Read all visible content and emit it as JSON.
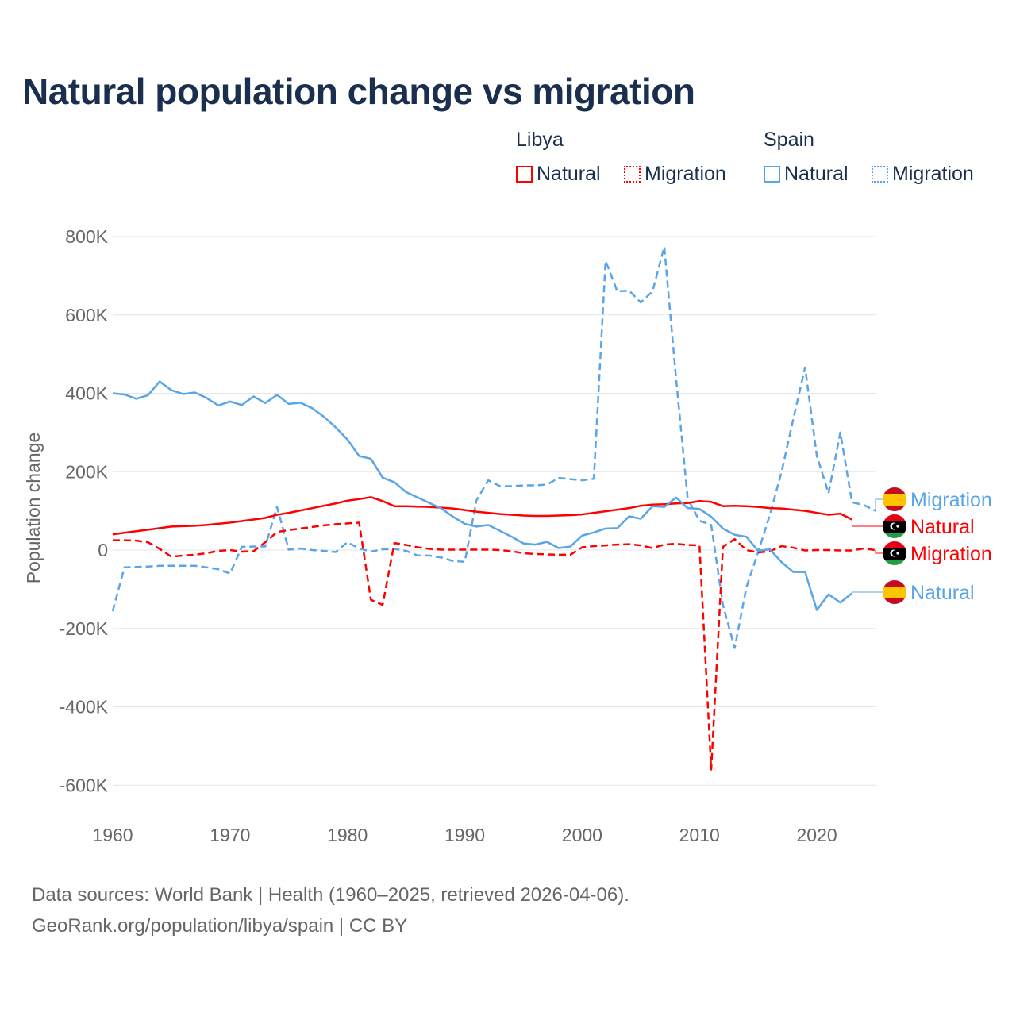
{
  "title": "Natural population change vs migration",
  "legend": {
    "groups": [
      {
        "name": "Libya",
        "items": [
          {
            "label": "Natural",
            "style": "solid"
          },
          {
            "label": "Migration",
            "style": "dashed"
          }
        ],
        "color": "#ff0000"
      },
      {
        "name": "Spain",
        "items": [
          {
            "label": "Natural",
            "style": "solid"
          },
          {
            "label": "Migration",
            "style": "dashed"
          }
        ],
        "color": "#5aa5e8"
      }
    ]
  },
  "footer": {
    "line1": "Data sources: World Bank | Health (1960–2025, retrieved 2026-04-06).",
    "line2": "GeoRank.org/population/libya/spain | CC BY"
  },
  "chart_data": {
    "type": "line",
    "title": "Natural population change vs migration",
    "xlabel": "",
    "ylabel": "Population change",
    "xlim": [
      1960,
      2025
    ],
    "ylim": [
      -650000,
      820000
    ],
    "xticks": [
      1960,
      1970,
      1980,
      1990,
      2000,
      2010,
      2020
    ],
    "yticks": [
      -600000,
      -400000,
      -200000,
      0,
      200000,
      400000,
      600000,
      800000
    ],
    "ytick_labels": [
      "-600K",
      "-400K",
      "-200K",
      "0",
      "200K",
      "400K",
      "600K",
      "800K"
    ],
    "grid": true,
    "start_year": 1960,
    "series": [
      {
        "name": "Spain Migration",
        "end_label": "Migration",
        "country": "Spain",
        "color": "#5aa5e8",
        "dashed": true,
        "values": [
          -156,
          -44,
          -43,
          -42,
          -40,
          -40,
          -40,
          -40,
          -44,
          -49,
          -60,
          8,
          9,
          9,
          110,
          1,
          4,
          0,
          -2,
          -5,
          20,
          4,
          -4,
          2,
          3,
          -2,
          -14,
          -14,
          -19,
          -28,
          -30,
          127,
          178,
          163,
          163,
          165,
          165,
          167,
          184,
          181,
          178,
          182,
          738,
          660,
          662,
          632,
          660,
          774,
          440,
          130,
          75,
          64,
          -140,
          -250,
          -95,
          -5,
          90,
          200,
          335,
          466,
          240,
          145,
          300,
          122,
          115,
          100
        ]
      },
      {
        "name": "Libya Natural",
        "end_label": "Natural",
        "country": "Libya",
        "color": "#ff0000",
        "dashed": false,
        "values": [
          40,
          44,
          48,
          52,
          56,
          60,
          61,
          62,
          64,
          67,
          70,
          74,
          78,
          82,
          90,
          95,
          101,
          107,
          113,
          119,
          126,
          130,
          135,
          125,
          112,
          112,
          111,
          110,
          108,
          106,
          102,
          98,
          95,
          92,
          90,
          88,
          87,
          87,
          88,
          89,
          91,
          95,
          99,
          103,
          107,
          113,
          116,
          117,
          119,
          120,
          125,
          123,
          112,
          113,
          112,
          110,
          107,
          106,
          103,
          100,
          95,
          90,
          93,
          78
        ]
      },
      {
        "name": "Libya Migration",
        "end_label": "Migration",
        "country": "Libya",
        "color": "#ff0000",
        "dashed": true,
        "values": [
          25,
          25,
          24,
          20,
          3,
          -17,
          -14,
          -12,
          -8,
          -2,
          0,
          -4,
          -3,
          20,
          46,
          51,
          55,
          59,
          63,
          66,
          68,
          70,
          -127,
          -140,
          18,
          13,
          7,
          3,
          1,
          1,
          1,
          1,
          1,
          0,
          -3,
          -8,
          -10,
          -11,
          -12,
          -12,
          7,
          10,
          12,
          14,
          15,
          12,
          5,
          14,
          16,
          13,
          12,
          -560,
          8,
          28,
          0,
          -6,
          -3,
          10,
          6,
          -1,
          0,
          0,
          -1,
          -1,
          4,
          0
        ]
      },
      {
        "name": "Spain Natural",
        "end_label": "Natural",
        "country": "Spain",
        "color": "#5aa5e8",
        "dashed": false,
        "values": [
          400,
          397,
          386,
          395,
          430,
          408,
          398,
          402,
          388,
          369,
          379,
          370,
          392,
          375,
          396,
          373,
          376,
          362,
          340,
          313,
          282,
          240,
          233,
          185,
          173,
          148,
          134,
          120,
          106,
          85,
          67,
          60,
          64,
          49,
          34,
          17,
          14,
          21,
          5,
          9,
          37,
          45,
          55,
          56,
          86,
          80,
          112,
          110,
          134,
          107,
          105,
          85,
          55,
          39,
          34,
          -2,
          2,
          -31,
          -56,
          -56,
          -153,
          -113,
          -134,
          -110
        ]
      }
    ],
    "value_unit": "thousands"
  }
}
